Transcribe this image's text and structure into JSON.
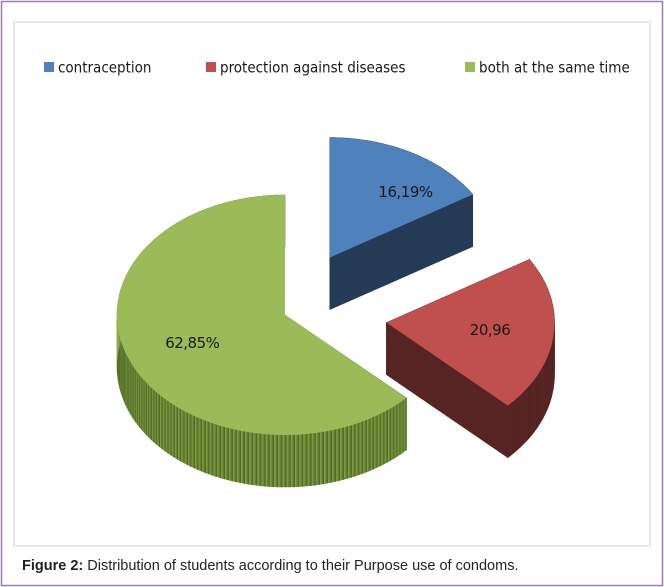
{
  "chart_data": {
    "type": "pie3d",
    "categories": [
      "contraception",
      "protection against diseases",
      "both at the same time"
    ],
    "values": [
      16.19,
      20.96,
      62.85
    ],
    "value_labels": [
      "16,19%",
      "20,96",
      "62,85%"
    ],
    "colors": [
      "#4f81bd",
      "#c0504d",
      "#9bbb59"
    ],
    "legend": "top",
    "caption_label": "Figure 2:",
    "caption": "Distribution of students according to their Purpose use of condoms."
  }
}
